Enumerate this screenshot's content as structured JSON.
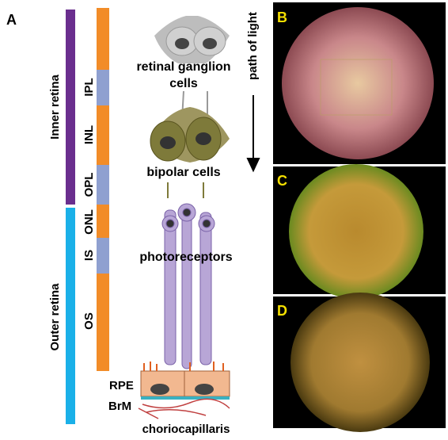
{
  "panel_a": {
    "label": "A",
    "regions": [
      "Inner retina",
      "Outer retina"
    ],
    "layers": [
      "IPL",
      "INL",
      "OPL",
      "ONL",
      "IS",
      "OS"
    ],
    "cells": {
      "ganglion": [
        "retinal ganglion",
        "cells"
      ],
      "bipolar": "bipolar cells",
      "photoreceptors": "photoreceptors"
    },
    "direction": "path of light",
    "bottom": [
      "RPE",
      "BrM",
      "choriocapillaris"
    ]
  },
  "panels": [
    "B",
    "C",
    "D"
  ]
}
